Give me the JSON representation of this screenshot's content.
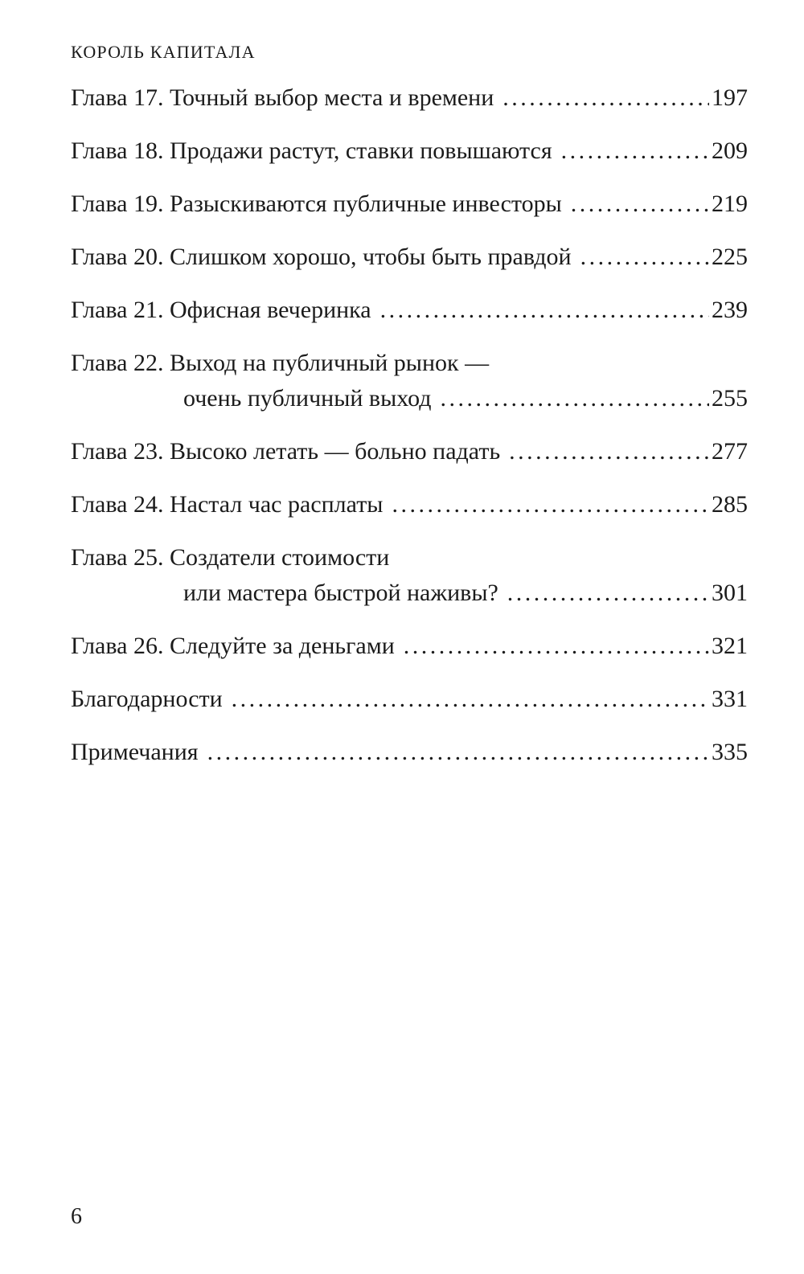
{
  "page": {
    "running_head": "КОРОЛЬ КАПИТАЛА",
    "folio": "6"
  },
  "toc": {
    "entries": [
      {
        "lines": [
          {
            "text": "Глава 17. Точный выбор места и времени",
            "page": "197"
          }
        ]
      },
      {
        "lines": [
          {
            "text": "Глава 18. Продажи растут, ставки повышаются",
            "page": "209"
          }
        ]
      },
      {
        "lines": [
          {
            "text": "Глава 19. Разыскиваются публичные инвесторы",
            "page": "219"
          }
        ]
      },
      {
        "lines": [
          {
            "text": "Глава 20. Слишком хорошо, чтобы быть правдой",
            "page": "225"
          }
        ]
      },
      {
        "lines": [
          {
            "text": "Глава 21. Офисная вечеринка",
            "page": "239"
          }
        ]
      },
      {
        "lines": [
          {
            "text": "Глава 22. Выход на публичный рынок —"
          },
          {
            "text": "очень публичный выход",
            "page": "255",
            "indent": true
          }
        ]
      },
      {
        "lines": [
          {
            "text": "Глава 23. Высоко летать — больно падать",
            "page": "277"
          }
        ]
      },
      {
        "lines": [
          {
            "text": "Глава 24. Настал час расплаты",
            "page": "285"
          }
        ]
      },
      {
        "lines": [
          {
            "text": "Глава 25. Создатели стоимости"
          },
          {
            "text": "или мастера быстрой наживы?",
            "page": "301",
            "indent": true
          }
        ]
      },
      {
        "lines": [
          {
            "text": "Глава 26. Следуйте за деньгами",
            "page": "321"
          }
        ]
      },
      {
        "lines": [
          {
            "text": "Благодарности",
            "page": "331"
          }
        ]
      },
      {
        "lines": [
          {
            "text": "Примечания",
            "page": "335"
          }
        ]
      }
    ]
  }
}
